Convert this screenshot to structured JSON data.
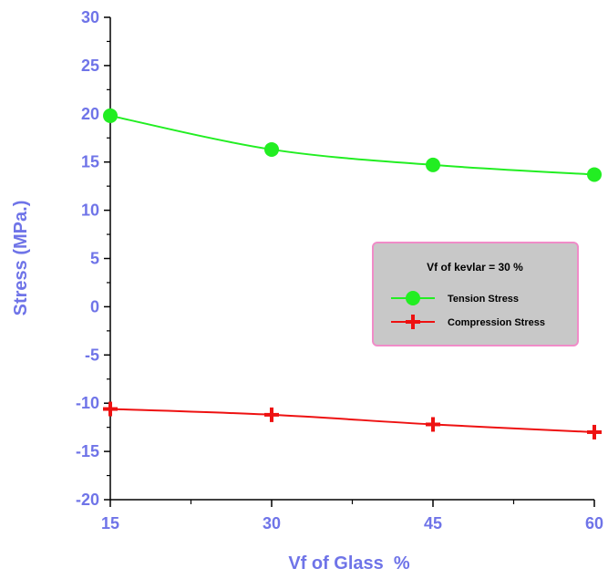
{
  "chart_data": {
    "type": "line",
    "xlabel": "Vf of Glass  %",
    "ylabel": "Stress (MPa.)",
    "xlim": [
      15,
      60
    ],
    "ylim": [
      -20,
      30
    ],
    "x_ticks": [
      "15",
      "30",
      "45",
      "60"
    ],
    "y_ticks": [
      "-20",
      "-15",
      "-10",
      "-5",
      "0",
      "5",
      "10",
      "15",
      "20",
      "25",
      "30"
    ],
    "grid": false,
    "legend": {
      "title": "Vf of kevlar = 30 %",
      "placement": "right-middle",
      "background": "#c8c8c8",
      "border_color": "#f08cc8"
    },
    "series": [
      {
        "name": "Tension Stress",
        "x": [
          15,
          30,
          45,
          60
        ],
        "values": [
          19.8,
          16.3,
          14.7,
          13.7
        ],
        "color": "#22ee22",
        "marker": "circle"
      },
      {
        "name": "Compression Stress",
        "x": [
          15,
          30,
          45,
          60
        ],
        "values": [
          -10.6,
          -11.2,
          -12.2,
          -13.0
        ],
        "color": "#ee1111",
        "marker": "plus"
      }
    ]
  }
}
